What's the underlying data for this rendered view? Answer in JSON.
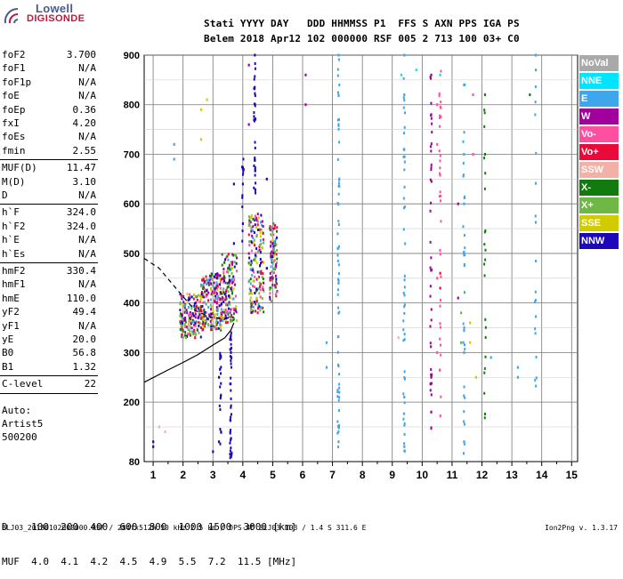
{
  "logo": {
    "line1": "Lowell",
    "line2": "DIGISONDE"
  },
  "header": {
    "row1": "Stati YYYY DAY   DDD HHMMSS P1  FFS S AXN PPS IGA PS",
    "row2": "Belem 2018 Apr12 102 000000 RSF 005 2 713 100 03+ C0"
  },
  "params": {
    "group1": [
      {
        "label": "foF2",
        "value": "3.700"
      },
      {
        "label": "foF1",
        "value": "N/A"
      },
      {
        "label": "foF1p",
        "value": "N/A"
      },
      {
        "label": "foE",
        "value": "N/A"
      },
      {
        "label": "foEp",
        "value": "0.36"
      },
      {
        "label": "fxI",
        "value": "4.20"
      },
      {
        "label": "foEs",
        "value": "N/A"
      },
      {
        "label": "fmin",
        "value": "2.55"
      }
    ],
    "group2": [
      {
        "label": "MUF(D)",
        "value": "11.47"
      },
      {
        "label": "M(D)",
        "value": "3.10"
      },
      {
        "label": "D",
        "value": "N/A"
      }
    ],
    "group3": [
      {
        "label": "h`F",
        "value": "324.0"
      },
      {
        "label": "h`F2",
        "value": "324.0"
      },
      {
        "label": "h`E",
        "value": "N/A"
      },
      {
        "label": "h`Es",
        "value": "N/A"
      }
    ],
    "group4": [
      {
        "label": "hmF2",
        "value": "330.4"
      },
      {
        "label": "hmF1",
        "value": "N/A"
      },
      {
        "label": "hmE",
        "value": "110.0"
      },
      {
        "label": "yF2",
        "value": "49.4"
      },
      {
        "label": "yF1",
        "value": "N/A"
      },
      {
        "label": "yE",
        "value": "20.0"
      },
      {
        "label": "B0",
        "value": "56.8"
      },
      {
        "label": "B1",
        "value": "1.32"
      }
    ],
    "group5": [
      {
        "label": "C-level",
        "value": "22"
      }
    ],
    "auto": {
      "line1": "Auto:",
      "line2": "Artist5",
      "line3": "500200"
    }
  },
  "legend": [
    {
      "label": "NoVal",
      "color": "#a9a9a9"
    },
    {
      "label": "NNE",
      "color": "#00e5ff"
    },
    {
      "label": "E",
      "color": "#3ea6ea"
    },
    {
      "label": "W",
      "color": "#a2009c"
    },
    {
      "label": "Vo-",
      "color": "#ff4fa0"
    },
    {
      "label": "Vo+",
      "color": "#ea0a3a"
    },
    {
      "label": "SSW",
      "color": "#f3b0a6"
    },
    {
      "label": "X-",
      "color": "#137a0d"
    },
    {
      "label": "X+",
      "color": "#6fb846"
    },
    {
      "label": "SSE",
      "color": "#d0cc00"
    },
    {
      "label": "NNW",
      "color": "#1c08b8"
    }
  ],
  "chart_data": {
    "type": "scatter",
    "title": "",
    "xlabel": "",
    "ylabel": "",
    "xlim": [
      0.7,
      15.2
    ],
    "ylim": [
      80,
      900
    ],
    "x_ticks": [
      1,
      2,
      3,
      4,
      5,
      6,
      7,
      8,
      9,
      10,
      11,
      12,
      13,
      14,
      15
    ],
    "y_ticks": [
      200,
      300,
      400,
      500,
      600,
      700,
      800,
      900
    ],
    "y_tick_labels": [
      "200",
      "300",
      "400",
      "500",
      "600",
      "700",
      "800",
      "900"
    ],
    "y_bottom_label": "80",
    "grid": true,
    "profile_lines": [
      {
        "name": "profile-dashed",
        "style": "dashed",
        "points": [
          [
            0.7,
            490
          ],
          [
            1.2,
            470
          ],
          [
            1.9,
            420
          ],
          [
            2.4,
            385
          ],
          [
            2.9,
            372
          ],
          [
            3.3,
            368
          ],
          [
            3.7,
            372
          ]
        ]
      },
      {
        "name": "profile-solid",
        "style": "solid",
        "points": [
          [
            0.7,
            240
          ],
          [
            1.4,
            262
          ],
          [
            2.0,
            280
          ],
          [
            2.5,
            296
          ],
          [
            3.0,
            315
          ],
          [
            3.4,
            330
          ],
          [
            3.6,
            345
          ],
          [
            3.7,
            360
          ]
        ]
      }
    ],
    "series": [
      {
        "color_key": "NNW",
        "points": [
          [
            4.4,
            900
          ],
          [
            4.4,
            420
          ],
          [
            3.6,
            300
          ],
          [
            3.6,
            90
          ],
          [
            3.2,
            250
          ],
          [
            3.2,
            120
          ],
          [
            3.0,
            100
          ],
          [
            1.0,
            110
          ],
          [
            1.0,
            120
          ],
          [
            4.8,
            650
          ],
          [
            4.8,
            470
          ],
          [
            3.7,
            640
          ],
          [
            3.7,
            520
          ],
          [
            4.0,
            640
          ],
          [
            4.0,
            560
          ],
          [
            5.0,
            520
          ],
          [
            5.0,
            450
          ]
        ]
      },
      {
        "color_key": "E",
        "points": [
          [
            7.2,
            900
          ],
          [
            7.2,
            760
          ],
          [
            7.2,
            440
          ],
          [
            7.2,
            120
          ],
          [
            9.4,
            900
          ],
          [
            9.4,
            820
          ],
          [
            9.4,
            210
          ],
          [
            9.4,
            110
          ],
          [
            11.4,
            840
          ],
          [
            11.4,
            600
          ],
          [
            11.4,
            300
          ],
          [
            11.4,
            120
          ],
          [
            6.8,
            320
          ],
          [
            6.8,
            270
          ],
          [
            1.7,
            720
          ],
          [
            1.7,
            690
          ],
          [
            13.2,
            250
          ],
          [
            13.2,
            270
          ],
          [
            12.3,
            290
          ],
          [
            13.8,
            900
          ],
          [
            13.8,
            870
          ]
        ]
      },
      {
        "color_key": "W",
        "points": [
          [
            10.3,
            860
          ],
          [
            10.3,
            780
          ],
          [
            10.3,
            250
          ],
          [
            10.3,
            180
          ],
          [
            11.2,
            600
          ],
          [
            11.2,
            410
          ],
          [
            6.1,
            860
          ],
          [
            6.1,
            800
          ],
          [
            4.2,
            880
          ],
          [
            4.2,
            760
          ]
        ]
      },
      {
        "color_key": "Vo-",
        "points": [
          [
            10.5,
            800
          ],
          [
            10.5,
            720
          ],
          [
            10.5,
            450
          ],
          [
            10.5,
            300
          ],
          [
            11.7,
            820
          ],
          [
            11.7,
            700
          ]
        ]
      },
      {
        "color_key": "Vo+",
        "points": [
          [
            10.6,
            460
          ],
          [
            10.6,
            430
          ],
          [
            2.4,
            330
          ],
          [
            2.6,
            350
          ]
        ]
      },
      {
        "color_key": "SSE",
        "points": [
          [
            2.6,
            790
          ],
          [
            2.6,
            730
          ],
          [
            2.8,
            810
          ],
          [
            11.6,
            360
          ],
          [
            11.6,
            320
          ],
          [
            11.8,
            250
          ]
        ]
      },
      {
        "color_key": "X-",
        "points": [
          [
            12.1,
            820
          ],
          [
            12.1,
            700
          ],
          [
            13.6,
            820
          ]
        ]
      },
      {
        "color_key": "X+",
        "points": [
          [
            11.3,
            380
          ],
          [
            11.3,
            320
          ]
        ]
      },
      {
        "color_key": "SSW",
        "points": [
          [
            1.2,
            150
          ],
          [
            1.4,
            140
          ],
          [
            9.2,
            330
          ]
        ]
      },
      {
        "color_key": "NNE",
        "points": [
          [
            9.3,
            860
          ],
          [
            9.8,
            870
          ],
          [
            10.6,
            860
          ]
        ]
      }
    ]
  },
  "footer": {
    "row1": "D    100  200  400  600  800  1000 1500  3000 [km]",
    "row2": "MUF  4.0  4.1  4.2  4.5  4.9  5.5  7.2  11.5 [MHz]",
    "row3": "BLJ03_20180102000000.RSF / 284fx512h 50 kHz 2.5 km / DPS-4D BLJ03 103 / 1.4 S 311.6 E",
    "version": "Ion2Png v. 1.3.17"
  }
}
